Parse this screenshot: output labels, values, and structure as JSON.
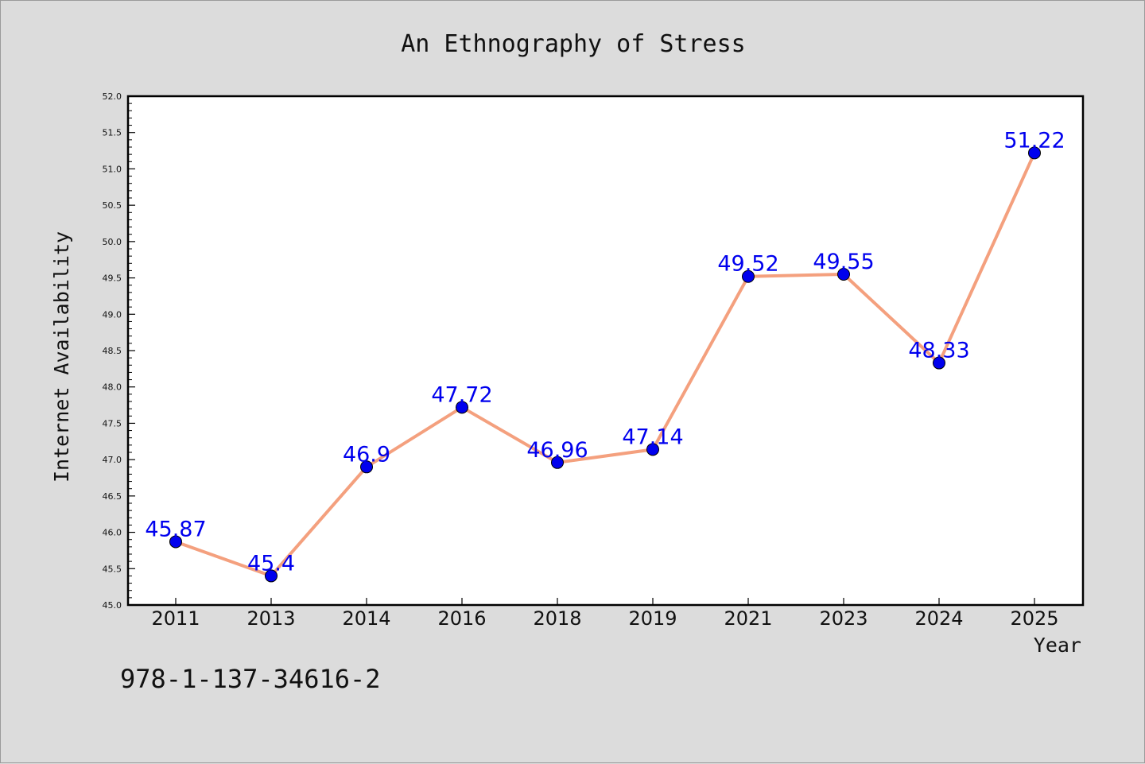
{
  "chart_data": {
    "type": "line",
    "title": "An Ethnography of Stress",
    "xlabel": "Year",
    "ylabel": "Internet Availability",
    "categories": [
      "2011",
      "2013",
      "2014",
      "2016",
      "2018",
      "2019",
      "2021",
      "2023",
      "2024",
      "2025"
    ],
    "series": [
      {
        "values": [
          45.87,
          45.4,
          46.9,
          47.72,
          46.96,
          47.14,
          49.52,
          49.55,
          48.33,
          51.22
        ]
      }
    ],
    "data_labels": [
      "45.87",
      "45.4",
      "46.9",
      "47.72",
      "46.96",
      "47.14",
      "49.52",
      "49.55",
      "48.33",
      "51.22"
    ],
    "ylim": [
      45.0,
      52.0
    ],
    "yticks": [
      45.0,
      45.5,
      46.0,
      46.5,
      47.0,
      47.5,
      48.0,
      48.5,
      49.0,
      49.5,
      50.0,
      50.5,
      51.0,
      51.5,
      52.0
    ],
    "ytick_labels": [
      "45.0",
      "45.5",
      "46.0",
      "46.5",
      "47.0",
      "47.5",
      "48.0",
      "48.5",
      "49.0",
      "49.5",
      "50.0",
      "50.5",
      "51.0",
      "51.5",
      "52.0"
    ],
    "grid": false,
    "legend": "none",
    "colors": {
      "line": "#f4a07e",
      "marker": "#0000ee",
      "label": "#0000ee",
      "plot_bg": "#ffffff",
      "figure_bg": "#dcdcdc"
    }
  },
  "footer": {
    "isbn": "978-1-137-34616-2"
  }
}
